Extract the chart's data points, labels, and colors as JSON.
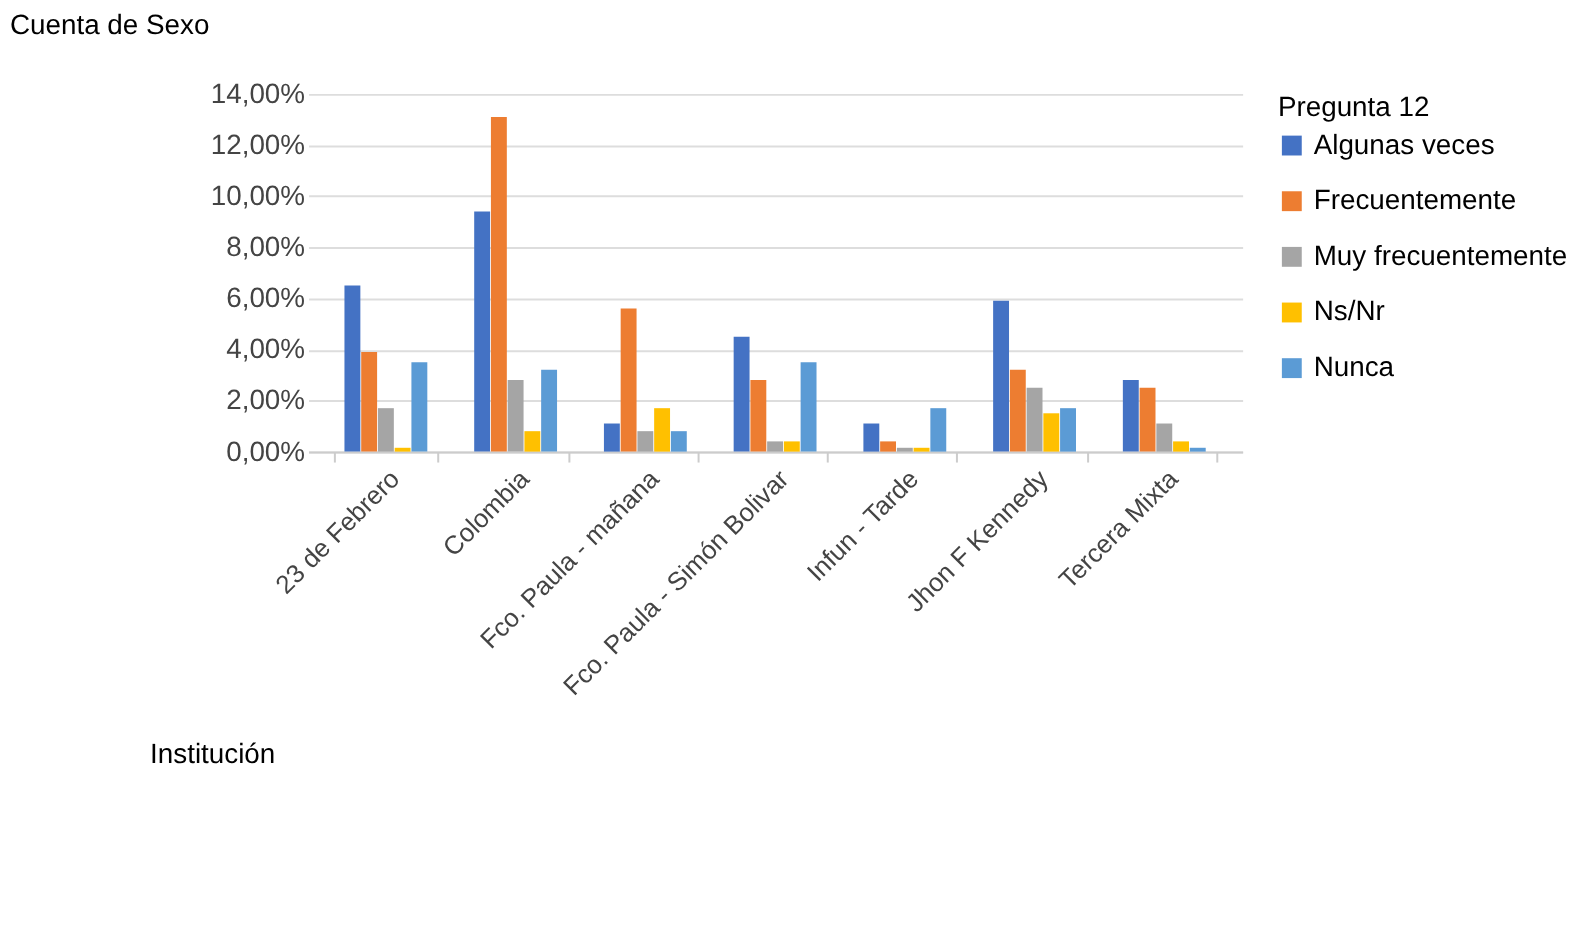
{
  "chart_data": {
    "type": "bar",
    "title": "Cuenta de Sexo",
    "xlabel": "Institución",
    "legend_title": "Pregunta 12",
    "categories": [
      "23 de Febrero",
      "Colombia",
      "Fco. Paula - mañana",
      "Fco. Paula - Simón Bolivar",
      "Infun - Tarde",
      "Jhon F Kennedy",
      "Tercera Mixta"
    ],
    "series": [
      {
        "name": "Algunas veces",
        "color": "#4472c4",
        "values": [
          6.5,
          9.4,
          1.1,
          4.5,
          1.1,
          5.9,
          2.8
        ]
      },
      {
        "name": "Frecuentemente",
        "color": "#ed7d31",
        "values": [
          3.9,
          13.1,
          5.6,
          2.8,
          0.4,
          3.2,
          2.5
        ]
      },
      {
        "name": "Muy frecuentemente",
        "color": "#a5a5a5",
        "values": [
          1.7,
          2.8,
          0.8,
          0.4,
          0.15,
          2.5,
          1.1
        ]
      },
      {
        "name": "Ns/Nr",
        "color": "#ffc000",
        "values": [
          0.15,
          0.8,
          1.7,
          0.4,
          0.15,
          1.5,
          0.4
        ]
      },
      {
        "name": "Nunca",
        "color": "#5b9bd5",
        "values": [
          3.5,
          3.2,
          0.8,
          3.5,
          1.7,
          1.7,
          0.15
        ]
      }
    ],
    "ylim": [
      0,
      14
    ],
    "yticks": [
      {
        "value": 0,
        "label": "0,00%"
      },
      {
        "value": 2,
        "label": "2,00%"
      },
      {
        "value": 4,
        "label": "4,00%"
      },
      {
        "value": 6,
        "label": "6,00%"
      },
      {
        "value": 8,
        "label": "8,00%"
      },
      {
        "value": 10,
        "label": "10,00%"
      },
      {
        "value": 12,
        "label": "12,00%"
      },
      {
        "value": 14,
        "label": "14,00%"
      }
    ],
    "grid": "y",
    "legend": "right"
  }
}
